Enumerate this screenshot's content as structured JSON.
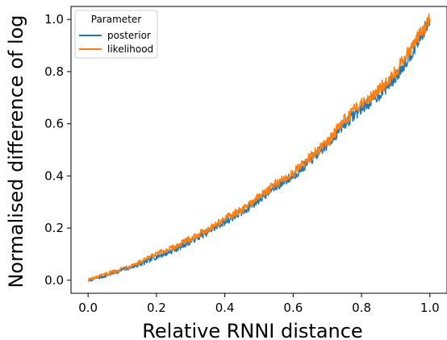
{
  "chart_data": {
    "type": "line",
    "xlabel": "Relative RNNI distance",
    "ylabel": "Normalised difference of log",
    "xlim": [
      -0.05,
      1.05
    ],
    "ylim": [
      -0.05,
      1.05
    ],
    "xticks": [
      "0.0",
      "0.2",
      "0.4",
      "0.6",
      "0.8",
      "1.0"
    ],
    "yticks": [
      "0.0",
      "0.2",
      "0.4",
      "0.6",
      "0.8",
      "1.0"
    ],
    "grid": false,
    "legend": {
      "title": "Parameter",
      "placement": "top-left"
    },
    "series": [
      {
        "name": "posterior",
        "color": "#1f77b4",
        "x": [
          0.0,
          0.05,
          0.1,
          0.15,
          0.2,
          0.25,
          0.3,
          0.35,
          0.4,
          0.45,
          0.5,
          0.55,
          0.6,
          0.65,
          0.7,
          0.75,
          0.8,
          0.85,
          0.9,
          0.95,
          1.0
        ],
        "y": [
          0.0,
          0.017,
          0.04,
          0.06,
          0.09,
          0.115,
          0.15,
          0.185,
          0.225,
          0.26,
          0.31,
          0.36,
          0.4,
          0.46,
          0.52,
          0.6,
          0.66,
          0.71,
          0.78,
          0.88,
          1.0
        ]
      },
      {
        "name": "likelihood",
        "color": "#ff7f0e",
        "x": [
          0.0,
          0.05,
          0.1,
          0.15,
          0.2,
          0.25,
          0.3,
          0.35,
          0.4,
          0.45,
          0.5,
          0.55,
          0.6,
          0.65,
          0.7,
          0.75,
          0.8,
          0.85,
          0.9,
          0.95,
          1.0
        ],
        "y": [
          0.0,
          0.022,
          0.045,
          0.068,
          0.1,
          0.125,
          0.16,
          0.195,
          0.235,
          0.27,
          0.32,
          0.37,
          0.41,
          0.47,
          0.53,
          0.615,
          0.68,
          0.73,
          0.8,
          0.9,
          1.0
        ]
      }
    ]
  }
}
